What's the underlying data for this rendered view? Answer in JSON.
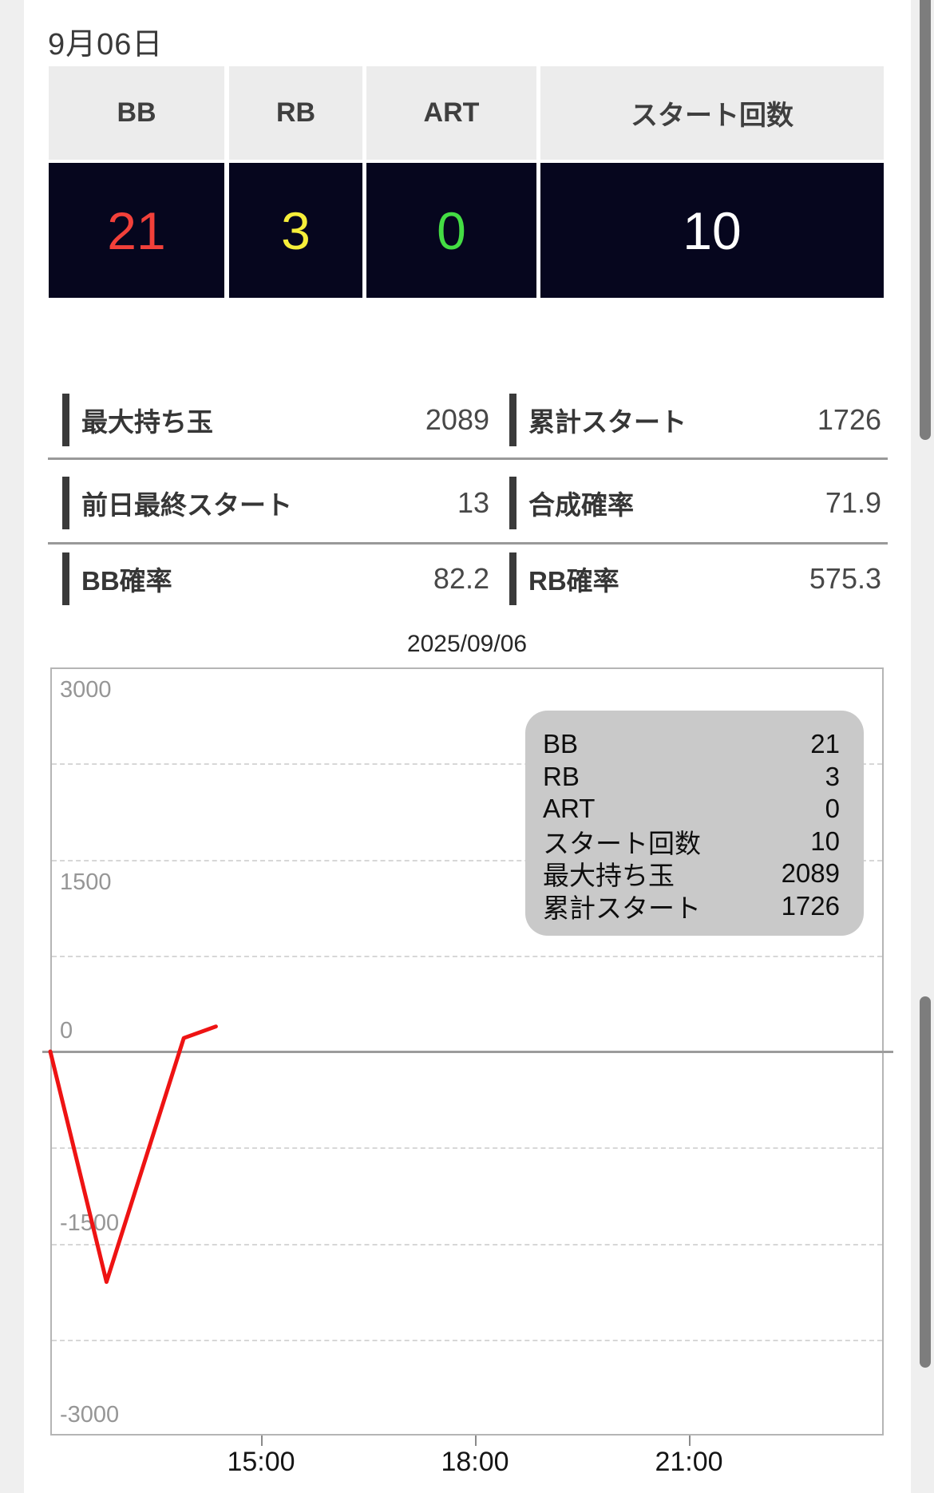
{
  "page": {
    "date_label": "9月06日"
  },
  "summary_table": {
    "columns": [
      {
        "label": "BB",
        "value": "21",
        "value_color": "#f2403a"
      },
      {
        "label": "RB",
        "value": "3",
        "value_color": "#f6ee3a"
      },
      {
        "label": "ART",
        "value": "0",
        "value_color": "#44dd44"
      },
      {
        "label": "スタート回数",
        "value": "10",
        "value_color": "#ffffff"
      }
    ]
  },
  "stats": {
    "rows": [
      [
        {
          "label": "最大持ち玉",
          "value": "2089"
        },
        {
          "label": "累計スタート",
          "value": "1726"
        }
      ],
      [
        {
          "label": "前日最終スタート",
          "value": "13"
        },
        {
          "label": "合成確率",
          "value": "71.9"
        }
      ],
      [
        {
          "label": "BB確率",
          "value": "82.2"
        },
        {
          "label": "RB確率",
          "value": "575.3"
        }
      ]
    ]
  },
  "chart_data": {
    "type": "line",
    "title": "2025/09/06",
    "xlabel": "",
    "ylabel": "",
    "ylim": [
      -3000,
      3000
    ],
    "y_major_ticks": [
      3000,
      1500,
      0,
      -1500,
      -3000
    ],
    "y_minor_tick_step": 750,
    "grid": "dashed minor/major lines, solid zero axis",
    "x_ticks": [
      "15:00",
      "18:00",
      "21:00"
    ],
    "x_range_hours": [
      12,
      24
    ],
    "line_color": "#ee1313",
    "series": [
      {
        "name": "",
        "points": [
          {
            "time": "12:00",
            "value": 0
          },
          {
            "time": "12:50",
            "value": -1800
          },
          {
            "time": "13:55",
            "value": 105
          },
          {
            "time": "14:22",
            "value": 195
          }
        ]
      }
    ],
    "legend_position": "top-right",
    "legend": [
      {
        "label": "BB",
        "value": "21"
      },
      {
        "label": "RB",
        "value": "3"
      },
      {
        "label": "ART",
        "value": "0"
      },
      {
        "label": "スタート回数",
        "value": "10"
      },
      {
        "label": "最大持ち玉",
        "value": "2089"
      },
      {
        "label": "累計スタート",
        "value": "1726"
      }
    ]
  }
}
